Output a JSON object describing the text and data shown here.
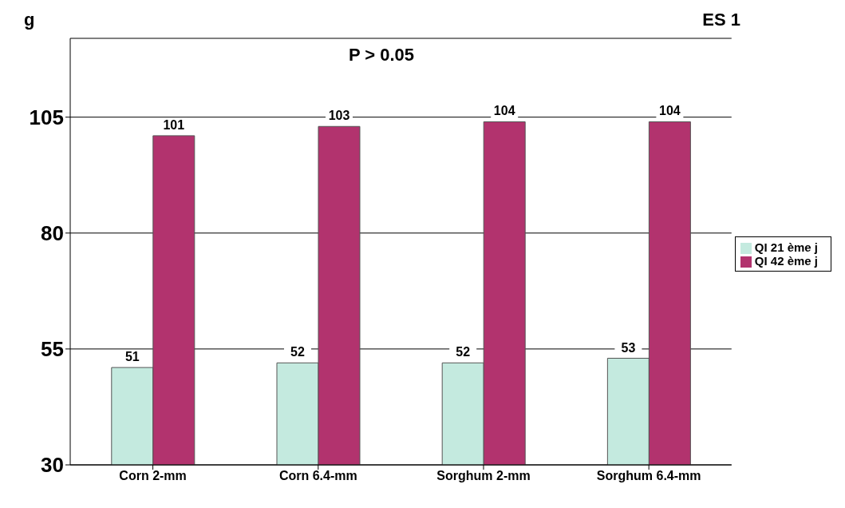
{
  "chart_data": {
    "type": "bar",
    "title": "ES 1",
    "ylabel": "g",
    "annotations": [
      "P > 0.05"
    ],
    "categories": [
      "Corn 2-mm",
      "Corn 6.4-mm",
      "Sorghum 2-mm",
      "Sorghum 6.4-mm"
    ],
    "series": [
      {
        "name": "QI 21 ème j",
        "color": "#c4eadf",
        "values": [
          51,
          52,
          52,
          53
        ]
      },
      {
        "name": "QI 42 ème j",
        "color": "#b2336e",
        "values": [
          101,
          103,
          104,
          104
        ]
      }
    ],
    "ylim": [
      30,
      122
    ],
    "yticks": [
      30,
      55,
      80,
      105
    ],
    "grid": "y",
    "legend": "right",
    "data_labels": true
  }
}
